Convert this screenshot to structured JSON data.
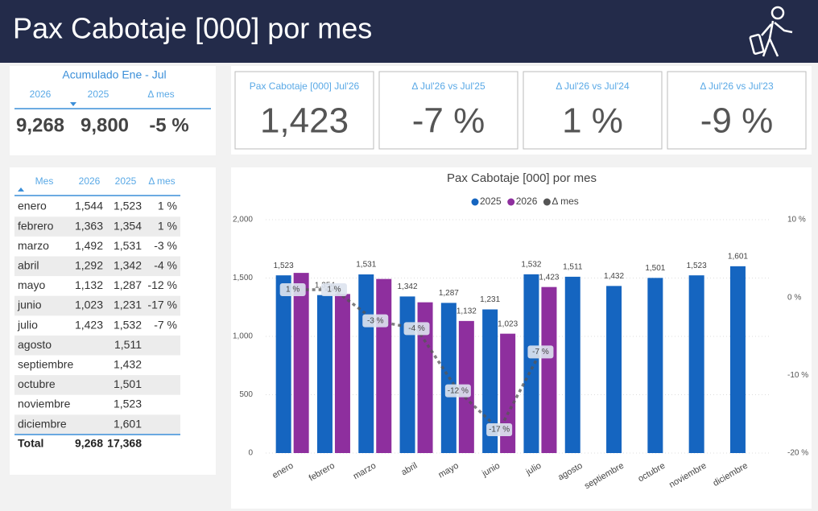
{
  "header": {
    "title": "Pax Cabotaje [000] por mes"
  },
  "summary": {
    "title": "Acumulado Ene - Jul",
    "columns": [
      "2026",
      "2025",
      "Δ mes"
    ],
    "values": [
      "9,268",
      "9,800",
      "-5 %"
    ]
  },
  "kpis": [
    {
      "label": "Pax Cabotaje [000] Jul'26",
      "value": "1,423"
    },
    {
      "label": "Δ Jul'26 vs Jul'25",
      "value": "-7 %"
    },
    {
      "label": "Δ Jul'26 vs Jul'24",
      "value": "1 %"
    },
    {
      "label": "Δ Jul'26 vs Jul'23",
      "value": "-9 %"
    }
  ],
  "table": {
    "headers": [
      "Mes",
      "2026",
      "2025",
      "Δ mes"
    ],
    "rows": [
      {
        "mes": "enero",
        "y2026": "1,544",
        "y2025": "1,523",
        "delta": "1 %"
      },
      {
        "mes": "febrero",
        "y2026": "1,363",
        "y2025": "1,354",
        "delta": "1 %"
      },
      {
        "mes": "marzo",
        "y2026": "1,492",
        "y2025": "1,531",
        "delta": "-3 %"
      },
      {
        "mes": "abril",
        "y2026": "1,292",
        "y2025": "1,342",
        "delta": "-4 %"
      },
      {
        "mes": "mayo",
        "y2026": "1,132",
        "y2025": "1,287",
        "delta": "-12 %"
      },
      {
        "mes": "junio",
        "y2026": "1,023",
        "y2025": "1,231",
        "delta": "-17 %"
      },
      {
        "mes": "julio",
        "y2026": "1,423",
        "y2025": "1,532",
        "delta": "-7 %"
      },
      {
        "mes": "agosto",
        "y2025": "1,511"
      },
      {
        "mes": "septiembre",
        "y2025": "1,432"
      },
      {
        "mes": "octubre",
        "y2025": "1,501"
      },
      {
        "mes": "noviembre",
        "y2025": "1,523"
      },
      {
        "mes": "diciembre",
        "y2025": "1,601"
      }
    ],
    "total": {
      "mes": "Total",
      "y2026": "9,268",
      "y2025": "17,368"
    }
  },
  "chart_data": {
    "type": "bar",
    "title": "Pax Cabotaje [000] por mes",
    "categories": [
      "enero",
      "febrero",
      "marzo",
      "abril",
      "mayo",
      "junio",
      "julio",
      "agosto",
      "septiembre",
      "octubre",
      "noviembre",
      "diciembre"
    ],
    "series": [
      {
        "name": "2025",
        "color": "#1565c0",
        "values": [
          1523,
          1354,
          1531,
          1342,
          1287,
          1231,
          1532,
          1511,
          1432,
          1501,
          1523,
          1601
        ],
        "value_labels": [
          "1,523",
          "1,354",
          "1,531",
          "1,342",
          "1,287",
          "1,231",
          "1,532",
          "1,511",
          "1,432",
          "1,501",
          "1,523",
          "1,601"
        ]
      },
      {
        "name": "2026",
        "color": "#8e2f9e",
        "values": [
          1544,
          1363,
          1492,
          1292,
          1132,
          1023,
          1423,
          null,
          null,
          null,
          null,
          null
        ],
        "value_labels": [
          null,
          null,
          null,
          null,
          "1,132",
          "1,023",
          "1,423",
          null,
          null,
          null,
          null,
          null
        ]
      },
      {
        "name": "Δ mes",
        "color": "#555555",
        "type": "line",
        "axis": "y2",
        "values": [
          1,
          1,
          -3,
          -4,
          -12,
          -17,
          -7,
          null,
          null,
          null,
          null,
          null
        ],
        "value_labels": [
          "1 %",
          "1 %",
          "-3 %",
          "-4 %",
          "-12 %",
          "-17 %",
          "-7 %",
          null,
          null,
          null,
          null,
          null
        ]
      }
    ],
    "ylim": [
      0,
      2000
    ],
    "yticks": [
      0,
      500,
      {
        "value": 1000,
        "label": "1,000"
      },
      {
        "value": 1500,
        "label": "1,500"
      },
      {
        "value": 2000,
        "label": "2,000"
      }
    ],
    "y2lim": [
      -20,
      10
    ],
    "y2ticks": [
      {
        "value": -20,
        "label": "-20 %"
      },
      {
        "value": -10,
        "label": "-10 %"
      },
      {
        "value": 0,
        "label": "0 %"
      },
      {
        "value": 10,
        "label": "10 %"
      }
    ],
    "grid": true
  }
}
